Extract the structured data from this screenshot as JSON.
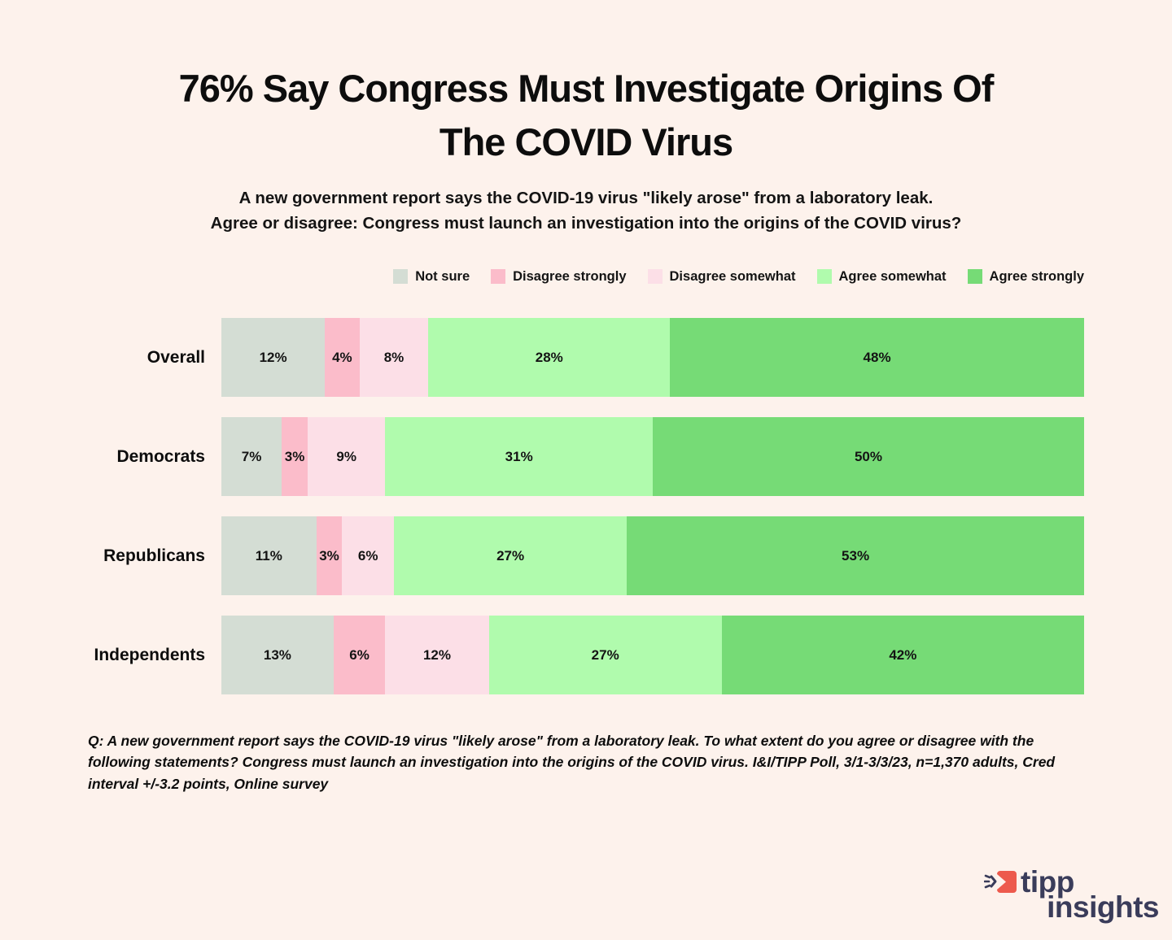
{
  "title_lines": [
    "76% Say Congress Must Investigate Origins Of",
    "The COVID Virus"
  ],
  "subtitle_lines": [
    "A new government report says the COVID-19 virus \"likely arose\" from a laboratory leak.",
    "Agree or disagree: Congress must launch an investigation into the origins of the COVID virus?"
  ],
  "colors": {
    "background": "#fdf2ec",
    "text": "#0d0d0d",
    "logo_navy": "#3a3c5a",
    "logo_red": "#ed5a4d"
  },
  "chart_data": {
    "type": "bar",
    "orientation": "horizontal_stacked",
    "value_suffix": "%",
    "xlim": [
      0,
      100
    ],
    "grid": false,
    "legend_position": "top",
    "categories": [
      "Overall",
      "Democrats",
      "Republicans",
      "Independents"
    ],
    "series": [
      {
        "name": "Not sure",
        "color": "#d4ddd4",
        "values": [
          12,
          7,
          11,
          13
        ]
      },
      {
        "name": "Disagree strongly",
        "color": "#fbbcca",
        "values": [
          4,
          3,
          3,
          6
        ]
      },
      {
        "name": "Disagree somewhat",
        "color": "#fcdfe7",
        "values": [
          8,
          9,
          6,
          12
        ]
      },
      {
        "name": "Agree somewhat",
        "color": "#b0fbad",
        "values": [
          28,
          31,
          27,
          27
        ]
      },
      {
        "name": "Agree strongly",
        "color": "#76db76",
        "values": [
          48,
          50,
          53,
          42
        ]
      }
    ]
  },
  "footnote": "Q:  A new government report says the COVID-19 virus \"likely arose\" from a laboratory leak. To what extent do you agree or disagree with the following statements? Congress must launch an investigation into the origins of the COVID virus. I&I/TIPP Poll, 3/1-3/3/23, n=1,370 adults, Cred interval +/-3.2 points, Online survey",
  "logo": {
    "line1": "tipp",
    "line2": "insights"
  }
}
